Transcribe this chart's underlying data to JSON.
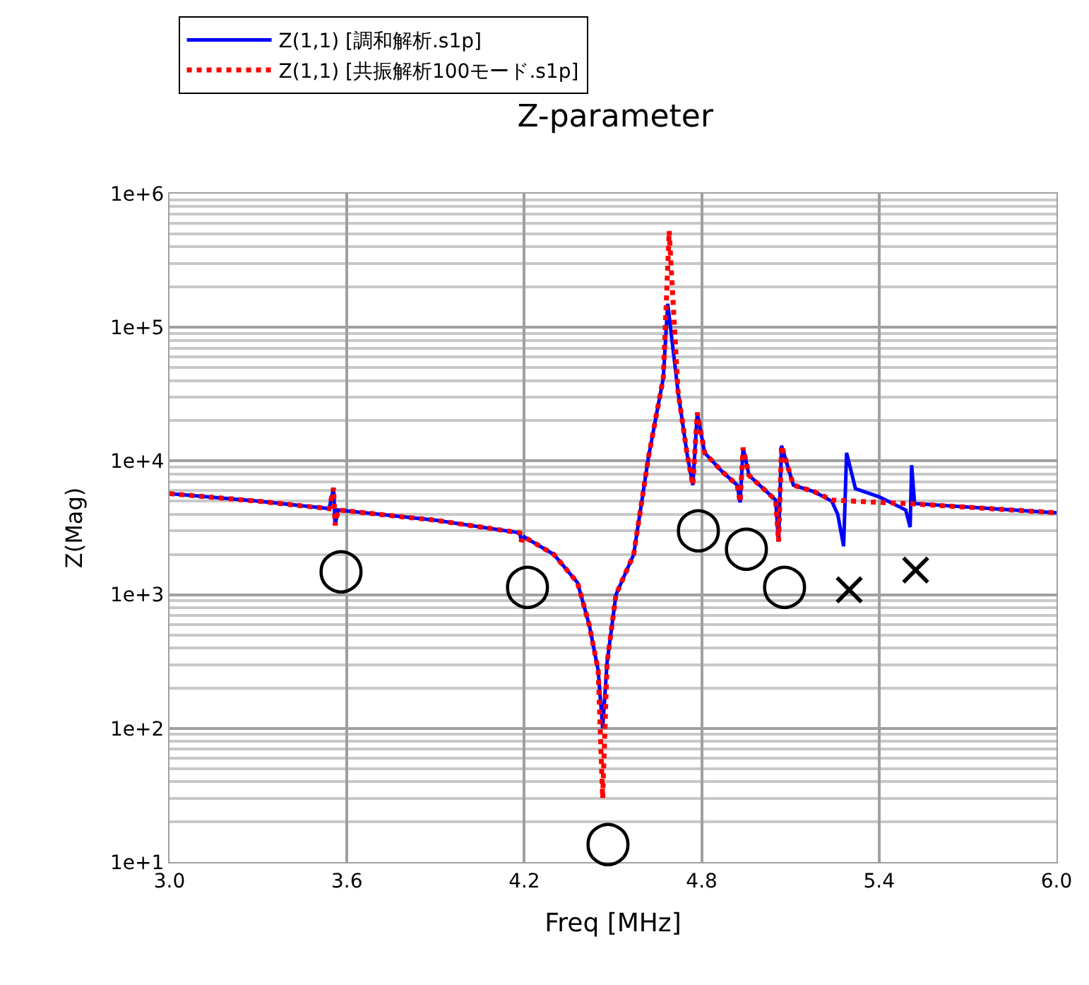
{
  "chart_data": {
    "type": "line",
    "title": "Z-parameter",
    "xlabel": "Freq [MHz]",
    "ylabel": "Z(Mag)",
    "xlim": [
      3.0,
      6.0
    ],
    "xticks": [
      {
        "value": 3.0,
        "label": "3.0"
      },
      3.6,
      4.2,
      4.8,
      5.4,
      {
        "value": 6.0,
        "label": "6.0"
      }
    ],
    "ylim": [
      10,
      1000000
    ],
    "yticks": [
      {
        "value": 10,
        "label": "1e+1"
      },
      {
        "value": 100,
        "label": "1e+2"
      },
      {
        "value": 1000,
        "label": "1e+3"
      },
      {
        "value": 10000,
        "label": "1e+4"
      },
      {
        "value": 100000,
        "label": "1e+5"
      },
      {
        "value": 1000000,
        "label": "1e+6"
      }
    ],
    "log": "y",
    "grid": true,
    "legend": "top",
    "marker": "none",
    "series": [
      {
        "name": "Z(1,1) [調和解析.s1p]",
        "color": "#0000ff",
        "line_style": "solid",
        "x": [
          3.0,
          3.3,
          3.54,
          3.555,
          3.56,
          3.57,
          3.9,
          4.185,
          4.19,
          4.2,
          4.3,
          4.38,
          4.42,
          4.45,
          4.465,
          4.48,
          4.51,
          4.57,
          4.62,
          4.67,
          4.685,
          4.72,
          4.75,
          4.77,
          4.785,
          4.81,
          4.87,
          4.92,
          4.93,
          4.94,
          4.96,
          5.05,
          5.06,
          5.07,
          5.11,
          5.18,
          5.24,
          5.26,
          5.28,
          5.29,
          5.32,
          5.4,
          5.49,
          5.505,
          5.51,
          5.52,
          6.0
        ],
        "values": [
          5700,
          5000,
          4400,
          6300,
          3300,
          4300,
          3600,
          2900,
          2500,
          2700,
          2000,
          1230,
          590,
          270,
          100,
          310,
          1000,
          2000,
          10700,
          41700,
          150000,
          33000,
          11500,
          6600,
          23000,
          11500,
          8300,
          6600,
          4900,
          12600,
          7800,
          5100,
          2500,
          13000,
          6600,
          5900,
          5000,
          4000,
          2300,
          11500,
          6200,
          5400,
          4300,
          3200,
          9300,
          4800,
          4100
        ]
      },
      {
        "name": "Z(1,1) [共振解析100モード.s1p]",
        "color": "#ff0000",
        "line_style": "dotted",
        "x": [
          3.0,
          3.3,
          3.54,
          3.555,
          3.56,
          3.57,
          3.9,
          4.185,
          4.19,
          4.2,
          4.3,
          4.38,
          4.42,
          4.45,
          4.465,
          4.48,
          4.51,
          4.57,
          4.62,
          4.67,
          4.69,
          4.72,
          4.75,
          4.77,
          4.785,
          4.81,
          4.87,
          4.92,
          4.93,
          4.94,
          4.96,
          5.05,
          5.06,
          5.07,
          5.11,
          5.18,
          5.24,
          5.4,
          5.5,
          6.0
        ],
        "values": [
          5700,
          5000,
          4400,
          6300,
          3300,
          4300,
          3600,
          2900,
          2500,
          2700,
          2000,
          1230,
          590,
          270,
          30,
          310,
          1000,
          2000,
          10700,
          41700,
          525000,
          33000,
          11500,
          6600,
          23000,
          11500,
          8300,
          6600,
          4900,
          12600,
          7800,
          5100,
          2500,
          13000,
          6600,
          5900,
          5100,
          4900,
          4800,
          4100
        ]
      }
    ],
    "annotations": [
      {
        "text": "○",
        "x": 3.56,
        "y": 3300
      },
      {
        "text": "○",
        "x": 4.19,
        "y": 2500
      },
      {
        "text": "○",
        "x": 4.465,
        "y": 30
      },
      {
        "text": "○",
        "x": 4.77,
        "y": 6600
      },
      {
        "text": "○",
        "x": 4.93,
        "y": 4900
      },
      {
        "text": "○",
        "x": 5.06,
        "y": 2500
      },
      {
        "text": "×",
        "x": 5.28,
        "y": 2300
      },
      {
        "text": "×",
        "x": 5.505,
        "y": 3200
      }
    ]
  }
}
